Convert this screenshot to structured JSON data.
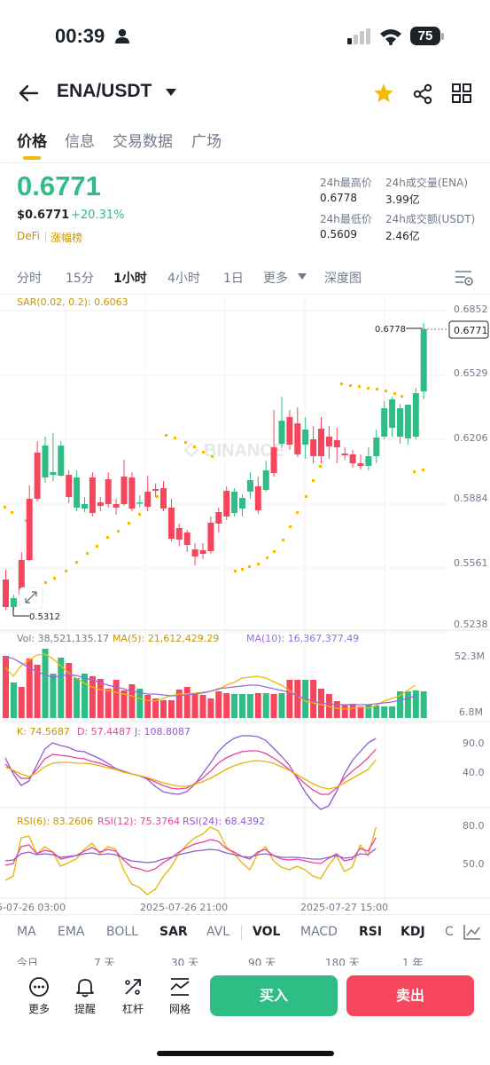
{
  "status": {
    "time": "00:39",
    "battery": "75"
  },
  "header": {
    "pair": "ENA/USDT"
  },
  "tabs": [
    "价格",
    "信息",
    "交易数据",
    "广场"
  ],
  "price": {
    "last": "0.6771",
    "usd": "$0.6771",
    "change": "+20.31%",
    "tags": [
      "DeFi",
      "涨幅榜"
    ]
  },
  "stats": {
    "high_label": "24h最高价",
    "high": "0.6778",
    "vol_base_label": "24h成交量(ENA)",
    "vol_base": "3.99亿",
    "low_label": "24h最低价",
    "low": "0.5609",
    "vol_quote_label": "24h成交额(USDT)",
    "vol_quote": "2.46亿"
  },
  "intervals": [
    "分时",
    "15分",
    "1小时",
    "4小时",
    "1日",
    "更多",
    "深度图"
  ],
  "chart": {
    "sar_label": "SAR(0.02, 0.2): 0.6063",
    "price_axis": [
      "0.6852",
      "0.6529",
      "0.6206",
      "0.5884",
      "0.5561",
      "0.5238"
    ],
    "last_price_tag": "0.6771",
    "high_marker": "0.6778",
    "low_marker": "0.5312",
    "watermark": "BINANCE",
    "vol_label": "Vol: 38,521,135.17",
    "ma5_label": "MA(5): 21,612,429.29",
    "ma10_label": "MA(10): 16,367,377.49",
    "vol_axis": [
      "52.3M",
      "6.8M"
    ],
    "k_label": "K: 74.5687",
    "d_label": "D: 57.4487",
    "j_label": "J: 108.8087",
    "kdj_axis": [
      "90.0",
      "40.0"
    ],
    "rsi6_label": "RSI(6): 83.2606",
    "rsi12_label": "RSI(12): 75.3764",
    "rsi24_label": "RSI(24): 68.4392",
    "rsi_axis": [
      "80.0",
      "50.0"
    ],
    "time_axis": [
      "5-07-26 03:00",
      "2025-07-26 21:00",
      "2025-07-27 15:00"
    ]
  },
  "indicators": [
    "MA",
    "EMA",
    "BOLL",
    "SAR",
    "AVL",
    "VOL",
    "MACD",
    "RSI",
    "KDJ",
    "C"
  ],
  "ranges": [
    "今日",
    "7 天",
    "30 天",
    "90 天",
    "180 天",
    "1 年"
  ],
  "bottom": {
    "tools": [
      "更多",
      "提醒",
      "杠杆",
      "网格"
    ],
    "buy": "买入",
    "sell": "卖出"
  },
  "colors": {
    "up": "#2ebd85",
    "down": "#f6465d",
    "brand": "#f0b90b",
    "ma5": "#f0b90b",
    "ma10": "#9c6ade"
  }
}
